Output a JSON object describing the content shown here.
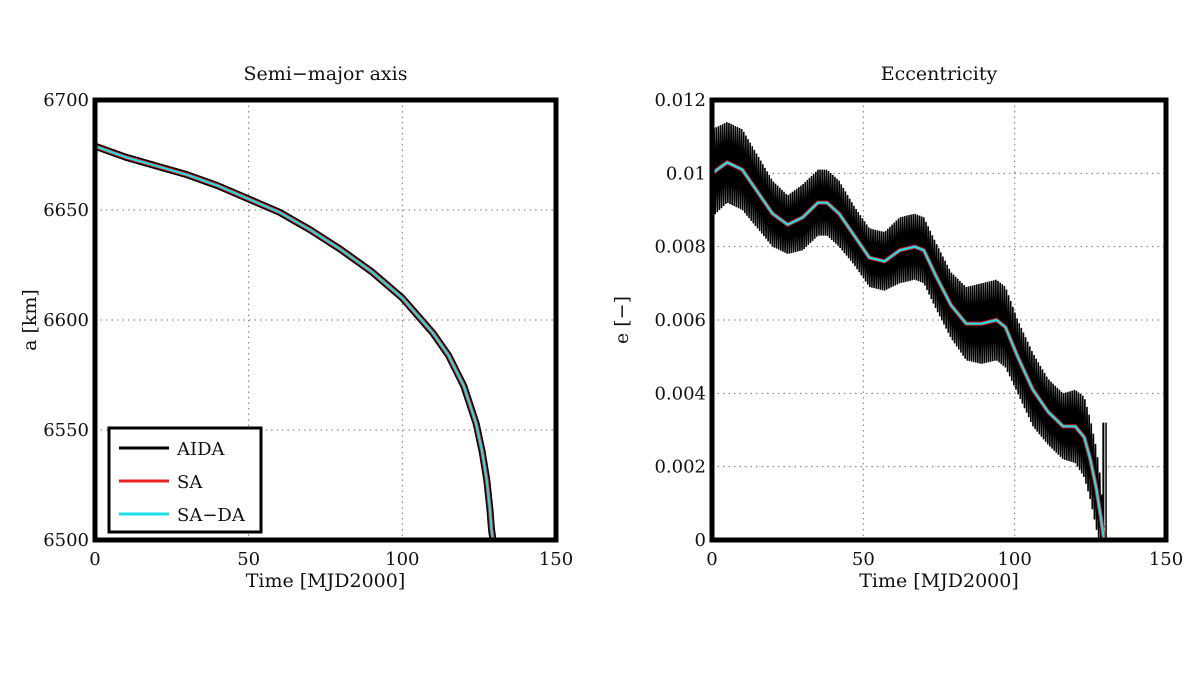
{
  "chart_data": [
    {
      "type": "line",
      "title": "Semi−major axis",
      "xlabel": "Time [MJD2000]",
      "ylabel": "a [km]",
      "xlim": [
        0,
        150
      ],
      "ylim": [
        6500,
        6700
      ],
      "xticks": [
        0,
        50,
        100,
        150
      ],
      "yticks": [
        6500,
        6550,
        6600,
        6650,
        6700
      ],
      "xtick_labels": [
        "0",
        "50",
        "100",
        "150"
      ],
      "ytick_labels": [
        "6500",
        "6550",
        "6600",
        "6650",
        "6700"
      ],
      "grid": true,
      "legend": "bottom-left",
      "series": [
        {
          "name": "AIDA",
          "color": "#000000",
          "x": [
            0,
            10,
            20,
            30,
            40,
            50,
            60,
            70,
            80,
            90,
            100,
            110,
            115,
            120,
            124,
            126,
            127.5,
            128.5,
            129,
            129.5
          ],
          "y": [
            6679,
            6674,
            6670,
            6666,
            6661,
            6655,
            6649,
            6641,
            6632,
            6622,
            6610,
            6594,
            6584,
            6570,
            6553,
            6540,
            6527,
            6514,
            6505,
            6500
          ]
        },
        {
          "name": "SA",
          "color": "#e8201e",
          "x": [
            0,
            10,
            20,
            30,
            40,
            50,
            60,
            70,
            80,
            90,
            100,
            110,
            115,
            120,
            124,
            126,
            127.5,
            128.5,
            129,
            129.5
          ],
          "y": [
            6679,
            6674,
            6670,
            6666,
            6661,
            6655,
            6649,
            6641,
            6632,
            6622,
            6610,
            6594,
            6584,
            6570,
            6553,
            6540,
            6527,
            6514,
            6505,
            6500
          ]
        },
        {
          "name": "SA−DA",
          "color": "#19e1ea",
          "x": [
            0,
            10,
            20,
            30,
            40,
            50,
            60,
            70,
            80,
            90,
            100,
            110,
            115,
            120,
            124,
            126,
            127.5,
            128.5,
            129,
            129.5
          ],
          "y": [
            6679,
            6674,
            6670,
            6666,
            6661,
            6655,
            6649,
            6641,
            6632,
            6622,
            6610,
            6594,
            6584,
            6570,
            6553,
            6540,
            6527,
            6514,
            6505,
            6500
          ]
        }
      ]
    },
    {
      "type": "line",
      "title": "Eccentricity",
      "xlabel": "Time [MJD2000]",
      "ylabel": "e [−]",
      "xlim": [
        0,
        150
      ],
      "ylim": [
        0,
        0.012
      ],
      "xticks": [
        0,
        50,
        100,
        150
      ],
      "yticks": [
        0,
        0.002,
        0.004,
        0.006,
        0.008,
        0.01,
        0.012
      ],
      "xtick_labels": [
        "0",
        "50",
        "100",
        "150"
      ],
      "ytick_labels": [
        "0",
        "0.002",
        "0.004",
        "0.006",
        "0.008",
        "0.01",
        "0.012"
      ],
      "grid": true,
      "series": [
        {
          "name": "AIDA",
          "color": "#000000",
          "x": [
            0,
            5,
            10,
            15,
            20,
            25,
            30,
            35,
            38,
            42,
            47,
            52,
            57,
            62,
            67,
            70,
            74,
            79,
            84,
            89,
            94,
            97,
            101,
            106,
            111,
            116,
            120,
            123,
            125,
            127,
            128.5,
            129.5
          ],
          "y": [
            0.01,
            0.0103,
            0.0101,
            0.0095,
            0.0089,
            0.0086,
            0.0088,
            0.0092,
            0.0092,
            0.0089,
            0.0083,
            0.0077,
            0.0076,
            0.0079,
            0.008,
            0.0079,
            0.0072,
            0.0064,
            0.0059,
            0.0059,
            0.006,
            0.0058,
            0.005,
            0.0041,
            0.0035,
            0.0031,
            0.0031,
            0.0028,
            0.0022,
            0.0014,
            0.0006,
            0.0
          ],
          "band_half_width": [
            0.0012,
            0.0011,
            0.0011,
            0.001,
            0.0009,
            0.0008,
            0.0009,
            0.0009,
            0.0009,
            0.0009,
            0.0008,
            0.0008,
            0.0008,
            0.0009,
            0.0009,
            0.0009,
            0.0009,
            0.0009,
            0.001,
            0.0011,
            0.0011,
            0.0011,
            0.001,
            0.001,
            0.0009,
            0.0009,
            0.001,
            0.0011,
            0.0011,
            0.0011,
            0.001,
            0.0004
          ]
        },
        {
          "name": "SA",
          "color": "#e8201e",
          "x": [
            0,
            5,
            10,
            15,
            20,
            25,
            30,
            35,
            38,
            42,
            47,
            52,
            57,
            62,
            67,
            70,
            74,
            79,
            84,
            89,
            94,
            97,
            101,
            106,
            111,
            116,
            120,
            123,
            125,
            127,
            128.5,
            129.5
          ],
          "y": [
            0.01,
            0.0103,
            0.0101,
            0.0095,
            0.0089,
            0.0086,
            0.0088,
            0.0092,
            0.0092,
            0.0089,
            0.0083,
            0.0077,
            0.0076,
            0.0079,
            0.008,
            0.0079,
            0.0072,
            0.0064,
            0.0059,
            0.0059,
            0.006,
            0.0058,
            0.005,
            0.0041,
            0.0035,
            0.0031,
            0.0031,
            0.0028,
            0.0022,
            0.0014,
            0.0006,
            0.0
          ]
        },
        {
          "name": "SA−DA",
          "color": "#19e1ea",
          "x": [
            0,
            5,
            10,
            15,
            20,
            25,
            30,
            35,
            38,
            42,
            47,
            52,
            57,
            62,
            67,
            70,
            74,
            79,
            84,
            89,
            94,
            97,
            101,
            106,
            111,
            116,
            120,
            123,
            125,
            127,
            128.5,
            129.5
          ],
          "y": [
            0.01,
            0.0103,
            0.0101,
            0.0095,
            0.0089,
            0.0086,
            0.0088,
            0.0092,
            0.0092,
            0.0089,
            0.0083,
            0.0077,
            0.0076,
            0.0079,
            0.008,
            0.0079,
            0.0072,
            0.0064,
            0.0059,
            0.0059,
            0.006,
            0.0058,
            0.005,
            0.0041,
            0.0035,
            0.0031,
            0.0031,
            0.0028,
            0.0022,
            0.0014,
            0.0006,
            0.0
          ]
        }
      ]
    }
  ]
}
